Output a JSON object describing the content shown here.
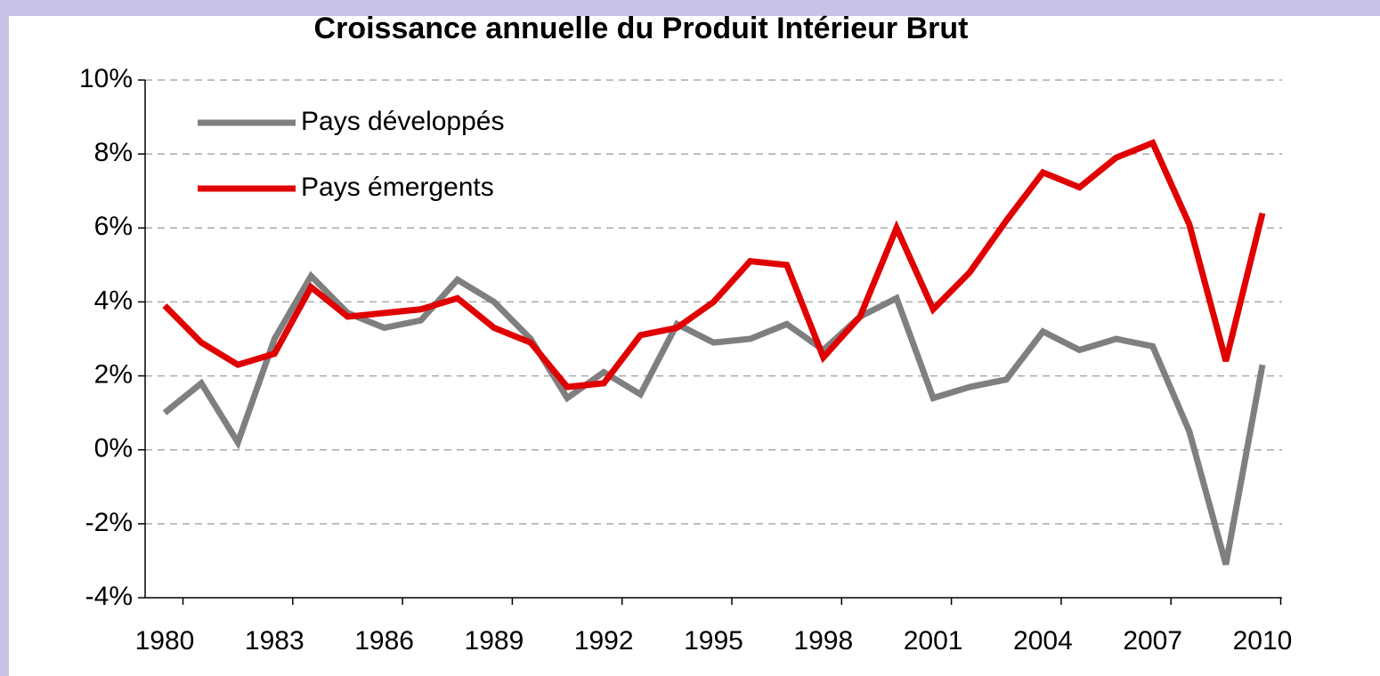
{
  "chart_data": {
    "type": "line",
    "title": "Croissance annuelle du Produit Intérieur Brut",
    "categories": [
      "1980",
      null,
      null,
      "1983",
      null,
      null,
      "1986",
      null,
      null,
      "1989",
      null,
      null,
      "1992",
      null,
      null,
      "1995",
      null,
      null,
      "1998",
      null,
      null,
      "2001",
      null,
      null,
      "2004",
      null,
      null,
      "2007",
      null,
      null,
      "2010"
    ],
    "series": [
      {
        "name": "Pays développés",
        "color": "#7f7f7f",
        "values": [
          1.0,
          1.8,
          0.2,
          3.0,
          4.7,
          3.7,
          3.3,
          3.5,
          4.6,
          4.0,
          3.0,
          1.4,
          2.1,
          1.5,
          3.4,
          2.9,
          3.0,
          3.4,
          2.7,
          3.6,
          4.1,
          1.4,
          1.7,
          1.9,
          3.2,
          2.7,
          3.0,
          2.8,
          0.5,
          -3.1,
          2.3
        ]
      },
      {
        "name": "Pays émergents",
        "color": "#e00000",
        "values": [
          3.9,
          2.9,
          2.3,
          2.6,
          4.4,
          3.6,
          3.7,
          3.8,
          4.1,
          3.3,
          2.9,
          1.7,
          1.8,
          3.1,
          3.3,
          4.0,
          5.1,
          5.0,
          2.5,
          3.6,
          6.0,
          3.8,
          4.8,
          6.2,
          7.5,
          7.1,
          7.9,
          8.3,
          6.1,
          2.4,
          6.4
        ]
      }
    ],
    "ylim": [
      -4,
      10
    ],
    "yticks": [
      {
        "value": -4,
        "label": "-4%"
      },
      {
        "value": -2,
        "label": "-2%"
      },
      {
        "value": 0,
        "label": "0%"
      },
      {
        "value": 2,
        "label": "2%"
      },
      {
        "value": 4,
        "label": "4%"
      },
      {
        "value": 6,
        "label": "6%"
      },
      {
        "value": 8,
        "label": "8%"
      },
      {
        "value": 10,
        "label": "10%"
      }
    ],
    "grid": true,
    "legend": "upper left"
  }
}
